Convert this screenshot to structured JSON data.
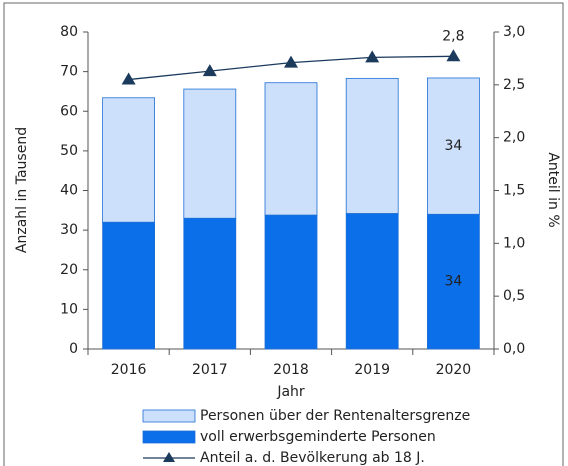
{
  "chart_data": {
    "type": "bar",
    "stacked": true,
    "categories": [
      "2016",
      "2017",
      "2018",
      "2019",
      "2020"
    ],
    "series": [
      {
        "name": "voll erwerbsgeminderte Personen",
        "color": "#0a6fe8",
        "values": [
          32,
          33,
          33.8,
          34.2,
          34
        ],
        "value_labels": [
          null,
          null,
          null,
          null,
          "34"
        ]
      },
      {
        "name": "Personen über der Rentenaltersgrenze",
        "color": "#cce0fb",
        "values": [
          31.4,
          32.6,
          33.4,
          34.1,
          34.4
        ],
        "value_labels": [
          null,
          null,
          null,
          null,
          "34"
        ]
      },
      {
        "name": "Anteil a. d. Bevölkerung ab 18 J.",
        "type": "line",
        "axis": "y2",
        "color": "#1b3a5c",
        "values": [
          2.55,
          2.63,
          2.71,
          2.76,
          2.77
        ],
        "value_labels": [
          null,
          null,
          null,
          null,
          "2,8"
        ]
      }
    ],
    "xlabel": "Jahr",
    "ylabel": "Anzahl in Tausend",
    "y2label": "Anteil in %",
    "ylim": [
      0,
      80
    ],
    "yticks": [
      0,
      10,
      20,
      30,
      40,
      50,
      60,
      70,
      80
    ],
    "y2lim": [
      0,
      3
    ],
    "y2ticks": [
      {
        "value": 0,
        "label": "0,0"
      },
      {
        "value": 0.5,
        "label": "0,5"
      },
      {
        "value": 1,
        "label": "1,0"
      },
      {
        "value": 1.5,
        "label": "1,5"
      },
      {
        "value": 2,
        "label": "2,0"
      },
      {
        "value": 2.5,
        "label": "2,5"
      },
      {
        "value": 3,
        "label": "3,0"
      }
    ]
  }
}
